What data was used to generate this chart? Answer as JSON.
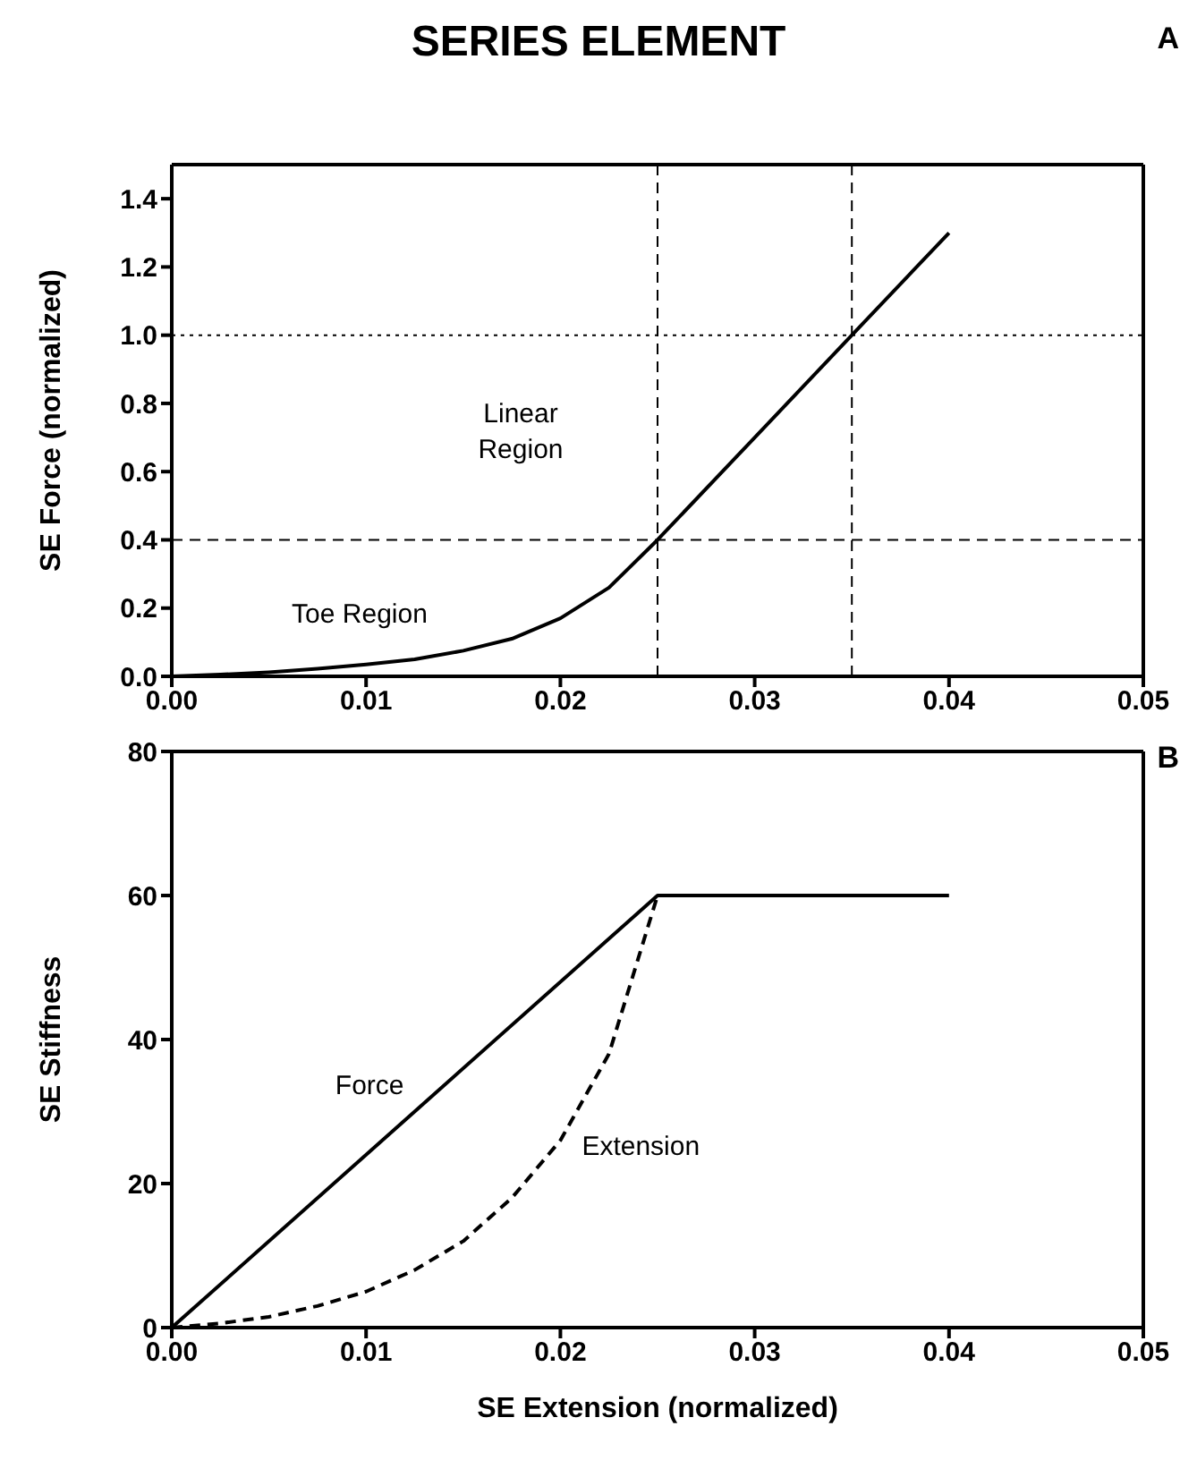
{
  "chart_data": [
    {
      "type": "line",
      "title": "SERIES ELEMENT",
      "ylabel": "SE Force (normalized)",
      "xlim": [
        0,
        0.05
      ],
      "xticks": [
        {
          "value": 0,
          "label": "0.00"
        },
        {
          "value": 0.01,
          "label": "0.01"
        },
        {
          "value": 0.02,
          "label": "0.02"
        },
        {
          "value": 0.03,
          "label": "0.03"
        },
        {
          "value": 0.04,
          "label": "0.04"
        },
        {
          "value": 0.05,
          "label": "0.05"
        }
      ],
      "ylim": [
        0,
        1.5
      ],
      "yticks": [
        {
          "value": 0,
          "label": "0.0"
        },
        {
          "value": 0.2,
          "label": "0.2"
        },
        {
          "value": 0.4,
          "label": "0.4"
        },
        {
          "value": 0.6,
          "label": "0.6"
        },
        {
          "value": 0.8,
          "label": "0.8"
        },
        {
          "value": 1,
          "label": "1.0"
        },
        {
          "value": 1.2,
          "label": "1.2"
        },
        {
          "value": 1.4,
          "label": "1.4"
        }
      ],
      "marker": "none",
      "series": [
        {
          "color": "#000000",
          "line_style": "solid",
          "x": [
            0,
            0.0025,
            0.005,
            0.0075,
            0.01,
            0.0125,
            0.015,
            0.0175,
            0.02,
            0.0225,
            0.025,
            0.03,
            0.035,
            0.04
          ],
          "values": [
            0,
            0.005,
            0.012,
            0.022,
            0.035,
            0.05,
            0.075,
            0.11,
            0.17,
            0.26,
            0.4,
            0.7,
            1.0,
            1.3
          ]
        }
      ],
      "ref_lines": [
        {
          "axis": "x",
          "value": 0.025,
          "line_style": "dashed",
          "color": "#000000"
        },
        {
          "axis": "x",
          "value": 0.035,
          "line_style": "dashed",
          "color": "#000000"
        },
        {
          "axis": "y",
          "value": 0.4,
          "line_style": "dashed",
          "color": "#000000"
        },
        {
          "axis": "y",
          "value": 1.0,
          "line_style": "dotted",
          "color": "#000000"
        }
      ],
      "annotations": [
        "A",
        "Linear Region",
        "Toe Region"
      ]
    },
    {
      "type": "line",
      "xlabel": "SE Extension (normalized)",
      "ylabel": "SE Stiffness",
      "xlim": [
        0,
        0.05
      ],
      "xticks": [
        {
          "value": 0,
          "label": "0.00"
        },
        {
          "value": 0.01,
          "label": "0.01"
        },
        {
          "value": 0.02,
          "label": "0.02"
        },
        {
          "value": 0.03,
          "label": "0.03"
        },
        {
          "value": 0.04,
          "label": "0.04"
        },
        {
          "value": 0.05,
          "label": "0.05"
        }
      ],
      "ylim": [
        0,
        80
      ],
      "yticks": [
        0,
        20,
        40,
        60,
        80
      ],
      "marker": "none",
      "series": [
        {
          "name": "Force",
          "color": "#000000",
          "line_style": "solid",
          "x": [
            0,
            0.0125,
            0.025,
            0.0325,
            0.04
          ],
          "values": [
            0,
            30,
            60,
            60,
            60
          ]
        },
        {
          "name": "Extension",
          "color": "#000000",
          "line_style": "dashed",
          "x": [
            0,
            0.0025,
            0.005,
            0.0075,
            0.01,
            0.0125,
            0.015,
            0.0175,
            0.02,
            0.0225,
            0.025
          ],
          "values": [
            0,
            0.6,
            1.5,
            3,
            5,
            8,
            12,
            18,
            26,
            38,
            60
          ]
        }
      ],
      "annotations": [
        "B"
      ]
    }
  ]
}
